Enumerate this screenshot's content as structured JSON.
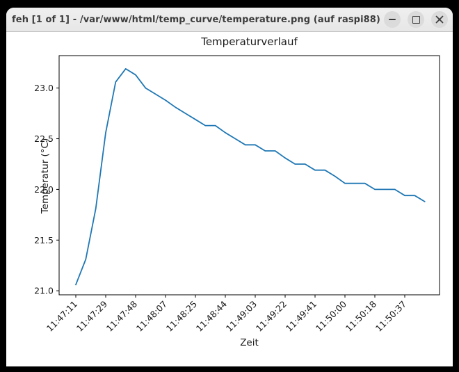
{
  "window": {
    "title": "feh [1 of 1] - /var/www/html/temp_curve/temperature.png (auf raspi88)",
    "controls": {
      "icons": [
        "minimize-icon",
        "maximize-icon",
        "close-icon"
      ]
    }
  },
  "chart_data": {
    "type": "line",
    "title": "Temperaturverlauf",
    "xlabel": "Zeit",
    "ylabel": "Temperatur (°C)",
    "line_color": "#1f77b4",
    "axis_color": "#000000",
    "text_color": "#1a1a1a",
    "grid": false,
    "legend": false,
    "ylim": [
      20.96,
      23.32
    ],
    "y_tick_labels": [
      "21.0",
      "21.5",
      "22.0",
      "22.5",
      "23.0"
    ],
    "y_tick_values": [
      21.0,
      21.5,
      22.0,
      22.5,
      23.0
    ],
    "x_tick_labels": [
      "11:47:11",
      "11:47:29",
      "11:47:48",
      "11:48:07",
      "11:48:25",
      "11:48:44",
      "11:49:03",
      "11:49:22",
      "11:49:41",
      "11:50:00",
      "11:50:18",
      "11:50:37"
    ],
    "points_per_tick": 3,
    "x": [
      "11:47:11",
      "11:47:17",
      "11:47:23",
      "11:47:29",
      "11:47:35",
      "11:47:42",
      "11:47:48",
      "11:47:54",
      "11:48:00",
      "11:48:07",
      "11:48:13",
      "11:48:19",
      "11:48:25",
      "11:48:31",
      "11:48:38",
      "11:48:44",
      "11:48:50",
      "11:48:56",
      "11:49:03",
      "11:49:09",
      "11:49:15",
      "11:49:22",
      "11:49:28",
      "11:49:34",
      "11:49:41",
      "11:49:47",
      "11:49:53",
      "11:50:00",
      "11:50:06",
      "11:50:12",
      "11:50:18",
      "11:50:24",
      "11:50:31",
      "11:50:37",
      "11:50:43",
      "11:50:49"
    ],
    "values": [
      21.06,
      21.31,
      21.81,
      22.56,
      23.06,
      23.19,
      23.13,
      23.0,
      22.94,
      22.88,
      22.81,
      22.75,
      22.69,
      22.63,
      22.63,
      22.56,
      22.5,
      22.44,
      22.44,
      22.38,
      22.38,
      22.31,
      22.25,
      22.25,
      22.19,
      22.19,
      22.13,
      22.06,
      22.06,
      22.06,
      22.0,
      22.0,
      22.0,
      21.94,
      21.94,
      21.88
    ]
  }
}
